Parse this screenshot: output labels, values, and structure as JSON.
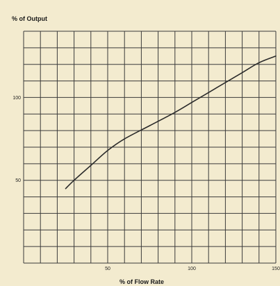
{
  "colors": {
    "background": "#f3ebcf",
    "grid": "#3a3a3a",
    "curve": "#2a2a2a",
    "text": "#1a1a1a"
  },
  "chart_data": {
    "type": "line",
    "title": "",
    "ylabel": "% of Output",
    "xlabel": "% of Flow Rate",
    "xlim": [
      0,
      150
    ],
    "ylim": [
      0,
      140
    ],
    "x_major_step": 10,
    "y_major_step": 10,
    "xticks": [
      {
        "value": 50,
        "label": "50"
      },
      {
        "value": 100,
        "label": "100"
      },
      {
        "value": 150,
        "label": "150"
      }
    ],
    "yticks": [
      {
        "value": 50,
        "label": "50"
      },
      {
        "value": 100,
        "label": "100"
      }
    ],
    "grid": true,
    "series": [
      {
        "x": [
          25,
          30,
          40,
          50,
          60,
          75,
          90,
          100,
          110,
          120,
          130,
          140,
          150
        ],
        "y": [
          45,
          50,
          59,
          68,
          75,
          83,
          91,
          97,
          103,
          109,
          115,
          121,
          125
        ]
      }
    ]
  }
}
